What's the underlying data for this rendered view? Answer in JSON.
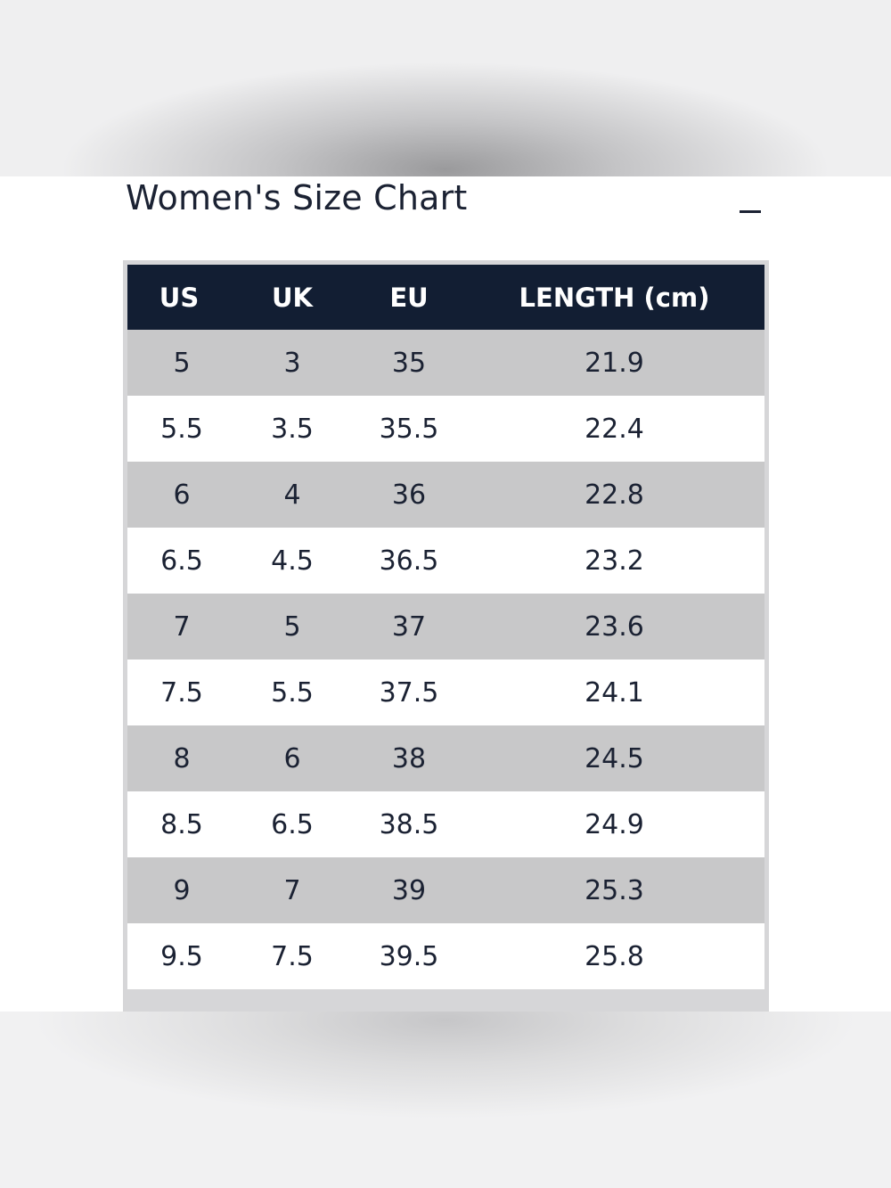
{
  "size_chart": {
    "title": "Women's Size Chart",
    "collapse_symbol": "−",
    "columns": [
      "US",
      "UK",
      "EU",
      "LENGTH (cm)"
    ],
    "rows": [
      [
        "5",
        "3",
        "35",
        "21.9"
      ],
      [
        "5.5",
        "3.5",
        "35.5",
        "22.4"
      ],
      [
        "6",
        "4",
        "36",
        "22.8"
      ],
      [
        "6.5",
        "4.5",
        "36.5",
        "23.2"
      ],
      [
        "7",
        "5",
        "37",
        "23.6"
      ],
      [
        "7.5",
        "5.5",
        "37.5",
        "24.1"
      ],
      [
        "8",
        "6",
        "38",
        "24.5"
      ],
      [
        "8.5",
        "6.5",
        "38.5",
        "24.9"
      ],
      [
        "9",
        "7",
        "39",
        "25.3"
      ],
      [
        "9.5",
        "7.5",
        "39.5",
        "25.8"
      ]
    ]
  },
  "colors": {
    "header_bg": "#121e33",
    "header_text": "#ffffff",
    "stripe_row": "#c8c8c9",
    "plain_row": "#ffffff",
    "text": "#1b2233"
  }
}
